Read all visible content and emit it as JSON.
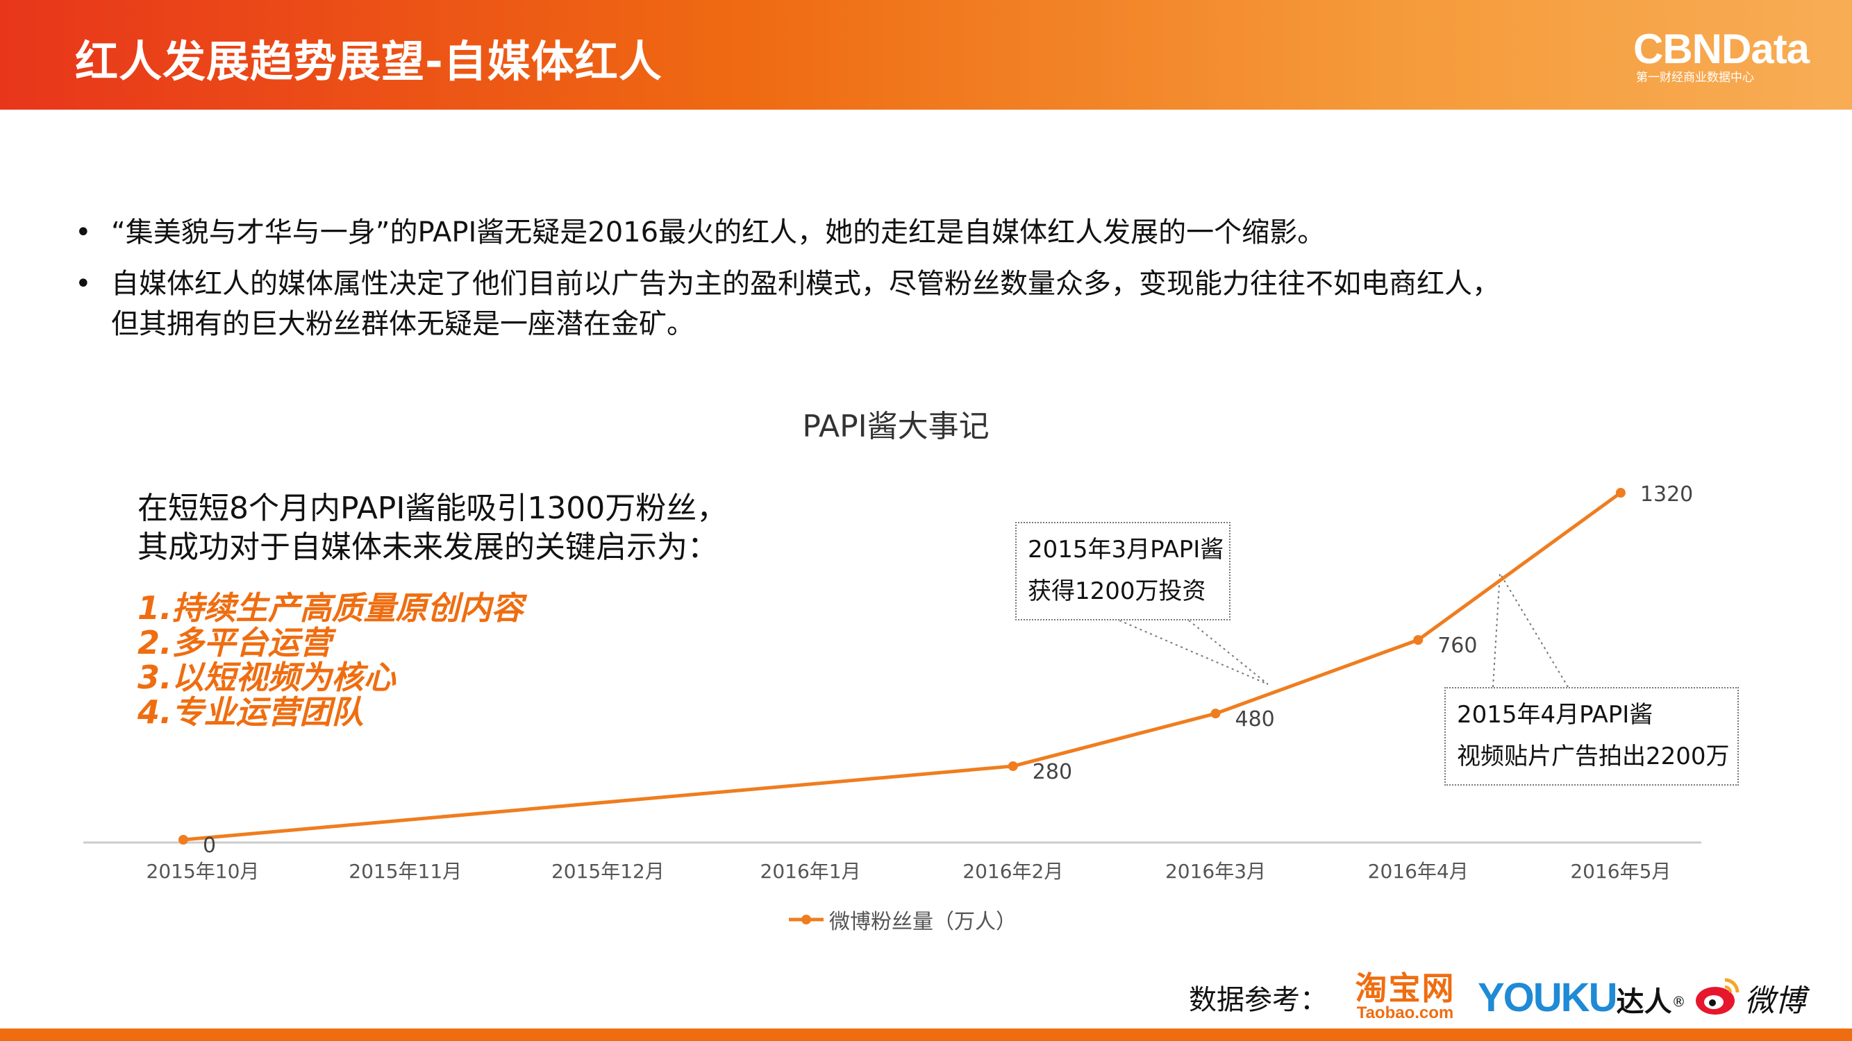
{
  "header": {
    "title": "红人发展趋势展望-自媒体红人",
    "brand": "CBNData",
    "brand_tagline": "第一财经商业数据中心"
  },
  "bullets": [
    {
      "symbol": "•",
      "lines": [
        "“集美貌与才华与一身”的PAPI酱无疑是2016最火的红人，她的走红是自媒体红人发展的一个缩影。"
      ]
    },
    {
      "symbol": "•",
      "lines": [
        "自媒体红人的媒体属性决定了他们目前以广告为主的盈利模式，尽管粉丝数量众多，变现能力往往不如电商红人，",
        "但其拥有的巨大粉丝群体无疑是一座潜在金矿。"
      ]
    }
  ],
  "insight": {
    "intro": [
      "在短短8个月内PAPI酱能吸引1300万粉丝，",
      "其成功对于自媒体未来发展的关键启示为："
    ],
    "points": [
      "1.持续生产高质量原创内容",
      "2.多平台运营",
      "3.以短视频为核心",
      "4.专业运营团队"
    ]
  },
  "callouts": [
    {
      "lines": [
        "2015年3月PAPI酱",
        "获得1200万投资"
      ]
    },
    {
      "lines": [
        "2015年4月PAPI酱",
        "视频贴片广告拍出2200万"
      ]
    }
  ],
  "chart_data": {
    "type": "line",
    "title": "PAPI酱大事记",
    "categories": [
      "2015年10月",
      "2015年11月",
      "2015年12月",
      "2016年1月",
      "2016年2月",
      "2016年3月",
      "2016年4月",
      "2016年5月"
    ],
    "series": [
      {
        "name": "微博粉丝量（万人）",
        "points": [
          {
            "x": "2015年10月",
            "y": 0
          },
          {
            "x": "2016年2月",
            "y": 280
          },
          {
            "x": "2016年3月",
            "y": 480
          },
          {
            "x": "2016年4月",
            "y": 760
          },
          {
            "x": "2016年5月",
            "y": 1320
          }
        ],
        "color": "#ef7d1f"
      }
    ],
    "ylim": [
      0,
      1320
    ],
    "grid": false,
    "legend": "bottom",
    "data_labels": true
  },
  "source": {
    "label": "数据参考：",
    "logos": {
      "taobao": {
        "name": "淘宝网",
        "domain": "Taobao.com"
      },
      "youku": {
        "word": "YOUKU",
        "suffix": "达人",
        "reg": "®"
      },
      "weibo": {
        "name": "微博",
        "icon": "weibo-eye-icon"
      }
    }
  },
  "colors": {
    "accent": "#ef6d10",
    "header_start": "#e8361b",
    "header_end": "#f8ad55",
    "axis": "#cccccc"
  }
}
